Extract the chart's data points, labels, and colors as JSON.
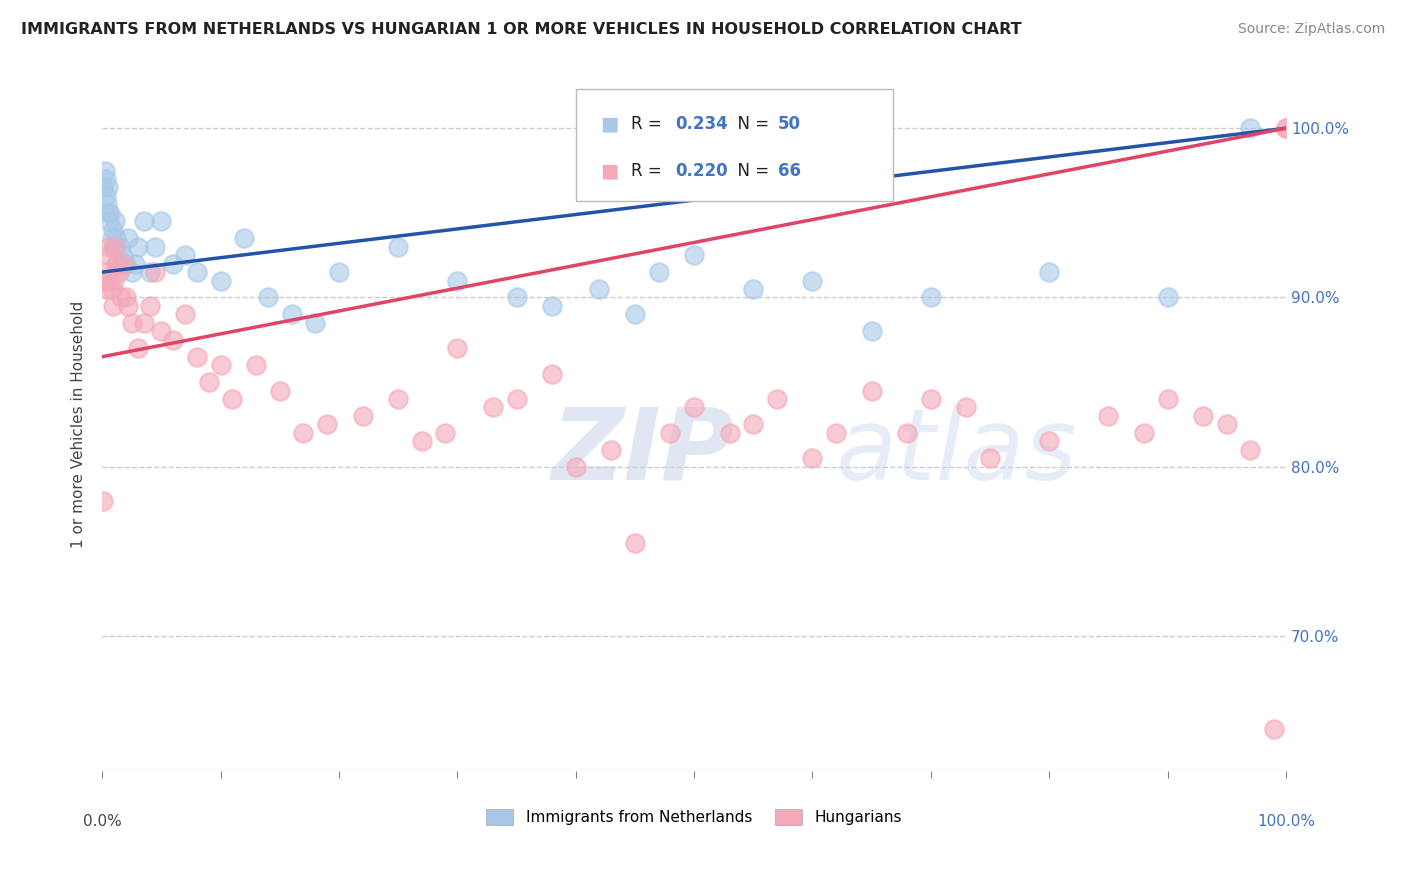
{
  "title": "IMMIGRANTS FROM NETHERLANDS VS HUNGARIAN 1 OR MORE VEHICLES IN HOUSEHOLD CORRELATION CHART",
  "source": "Source: ZipAtlas.com",
  "ylabel": "1 or more Vehicles in Household",
  "legend_bottom_blue": "Immigrants from Netherlands",
  "legend_bottom_pink": "Hungarians",
  "blue_color": "#a8c8e8",
  "pink_color": "#f4a8b8",
  "blue_line_color": "#2255aa",
  "pink_line_color": "#e04466",
  "watermark_zip": "ZIP",
  "watermark_atlas": "atlas",
  "blue_R": 0.234,
  "blue_N": 50,
  "pink_R": 0.22,
  "pink_N": 66,
  "ytick_positions": [
    70,
    80,
    90,
    100
  ],
  "ytick_labels": [
    "70.0%",
    "80.0%",
    "90.0%",
    "100.0%"
  ],
  "xlim": [
    0,
    100
  ],
  "ylim": [
    62,
    103
  ],
  "blue_x": [
    0.1,
    0.2,
    0.3,
    0.3,
    0.4,
    0.5,
    0.5,
    0.6,
    0.7,
    0.8,
    0.9,
    1.0,
    1.1,
    1.2,
    1.3,
    1.5,
    1.7,
    2.0,
    2.2,
    2.5,
    2.8,
    3.0,
    3.5,
    4.0,
    4.5,
    5.0,
    6.0,
    7.0,
    8.0,
    10.0,
    12.0,
    14.0,
    16.0,
    18.0,
    20.0,
    25.0,
    30.0,
    35.0,
    38.0,
    42.0,
    45.0,
    47.0,
    50.0,
    55.0,
    60.0,
    65.0,
    70.0,
    80.0,
    90.0,
    97.0
  ],
  "blue_y": [
    96.5,
    97.5,
    97.0,
    96.0,
    95.5,
    96.5,
    95.0,
    94.5,
    95.0,
    93.5,
    94.0,
    93.0,
    94.5,
    93.5,
    92.0,
    93.0,
    92.5,
    92.0,
    93.5,
    91.5,
    92.0,
    93.0,
    94.5,
    91.5,
    93.0,
    94.5,
    92.0,
    92.5,
    91.5,
    91.0,
    93.5,
    90.0,
    89.0,
    88.5,
    91.5,
    93.0,
    91.0,
    90.0,
    89.5,
    90.5,
    89.0,
    91.5,
    92.5,
    90.5,
    91.0,
    88.0,
    90.0,
    91.5,
    90.0,
    100.0
  ],
  "pink_x": [
    0.1,
    0.2,
    0.3,
    0.4,
    0.5,
    0.6,
    0.7,
    0.8,
    0.9,
    1.0,
    1.1,
    1.2,
    1.4,
    1.6,
    1.8,
    2.0,
    2.2,
    2.5,
    3.0,
    3.5,
    4.0,
    4.5,
    5.0,
    6.0,
    7.0,
    8.0,
    9.0,
    10.0,
    11.0,
    13.0,
    15.0,
    17.0,
    19.0,
    22.0,
    25.0,
    27.0,
    29.0,
    30.0,
    33.0,
    35.0,
    38.0,
    40.0,
    43.0,
    45.0,
    48.0,
    50.0,
    53.0,
    55.0,
    57.0,
    60.0,
    62.0,
    65.0,
    68.0,
    70.0,
    73.0,
    75.0,
    80.0,
    85.0,
    88.0,
    90.0,
    93.0,
    95.0,
    97.0,
    99.0,
    100.0,
    100.0
  ],
  "pink_y": [
    78.0,
    91.0,
    90.5,
    91.5,
    92.5,
    93.0,
    91.0,
    90.5,
    89.5,
    91.0,
    93.0,
    92.0,
    91.5,
    90.0,
    92.0,
    90.0,
    89.5,
    88.5,
    87.0,
    88.5,
    89.5,
    91.5,
    88.0,
    87.5,
    89.0,
    86.5,
    85.0,
    86.0,
    84.0,
    86.0,
    84.5,
    82.0,
    82.5,
    83.0,
    84.0,
    81.5,
    82.0,
    87.0,
    83.5,
    84.0,
    85.5,
    80.0,
    81.0,
    75.5,
    82.0,
    83.5,
    82.0,
    82.5,
    84.0,
    80.5,
    82.0,
    84.5,
    82.0,
    84.0,
    83.5,
    80.5,
    81.5,
    83.0,
    82.0,
    84.0,
    83.0,
    82.5,
    81.0,
    64.5,
    100.0,
    100.0
  ]
}
